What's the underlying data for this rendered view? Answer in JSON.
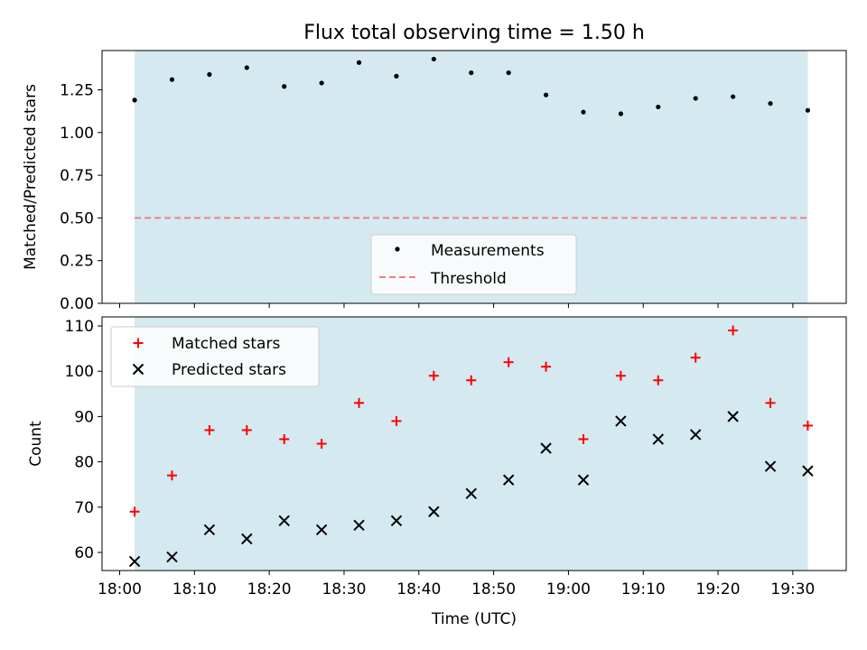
{
  "chart_data": [
    {
      "type": "scatter",
      "title": "Flux total observing time = 1.50 h",
      "xlabel": "",
      "ylabel": "Matched/Predicted stars",
      "ylim": [
        0,
        1.48
      ],
      "yticks": [
        "0.00",
        "0.25",
        "0.50",
        "0.75",
        "1.00",
        "1.25"
      ],
      "shaded_span": [
        "18:02",
        "19:32"
      ],
      "shade_color": "#d4eaf0",
      "legend_placement": "lower-center",
      "series": [
        {
          "name": "Measurements",
          "marker": "dot",
          "color": "#000000",
          "x": [
            "18:02",
            "18:07",
            "18:12",
            "18:17",
            "18:22",
            "18:27",
            "18:32",
            "18:37",
            "18:42",
            "18:47",
            "18:52",
            "18:57",
            "19:02",
            "19:07",
            "19:12",
            "19:17",
            "19:22",
            "19:27",
            "19:32"
          ],
          "y": [
            1.19,
            1.31,
            1.34,
            1.38,
            1.27,
            1.29,
            1.41,
            1.33,
            1.43,
            1.35,
            1.35,
            1.22,
            1.12,
            1.11,
            1.15,
            1.2,
            1.21,
            1.17,
            1.13
          ]
        },
        {
          "name": "Threshold",
          "marker": "dashed-line",
          "color": "#f08080",
          "value": 0.5
        }
      ]
    },
    {
      "type": "scatter",
      "title": "",
      "xlabel": "Time (UTC)",
      "ylabel": "Count",
      "ylim": [
        56,
        112
      ],
      "yticks": [
        "60",
        "70",
        "80",
        "90",
        "100",
        "110"
      ],
      "xticks": [
        "18:00",
        "18:10",
        "18:20",
        "18:30",
        "18:40",
        "18:50",
        "19:00",
        "19:10",
        "19:20",
        "19:30"
      ],
      "shaded_span": [
        "18:02",
        "19:32"
      ],
      "legend_placement": "upper-left",
      "series": [
        {
          "name": "Matched stars",
          "marker": "plus",
          "color": "#ff0000",
          "x": [
            "18:02",
            "18:07",
            "18:12",
            "18:17",
            "18:22",
            "18:27",
            "18:32",
            "18:37",
            "18:42",
            "18:47",
            "18:52",
            "18:57",
            "19:02",
            "19:07",
            "19:12",
            "19:17",
            "19:22",
            "19:27",
            "19:32"
          ],
          "y": [
            69,
            77,
            87,
            87,
            85,
            84,
            93,
            89,
            99,
            98,
            102,
            101,
            85,
            99,
            98,
            103,
            109,
            93,
            88
          ]
        },
        {
          "name": "Predicted stars",
          "marker": "x",
          "color": "#000000",
          "x": [
            "18:02",
            "18:07",
            "18:12",
            "18:17",
            "18:22",
            "18:27",
            "18:32",
            "18:37",
            "18:42",
            "18:47",
            "18:52",
            "18:57",
            "19:02",
            "19:07",
            "19:12",
            "19:17",
            "19:22",
            "19:27",
            "19:32"
          ],
          "y": [
            58,
            59,
            65,
            63,
            67,
            65,
            66,
            67,
            69,
            73,
            76,
            83,
            76,
            89,
            85,
            86,
            90,
            79,
            78
          ]
        }
      ]
    }
  ]
}
